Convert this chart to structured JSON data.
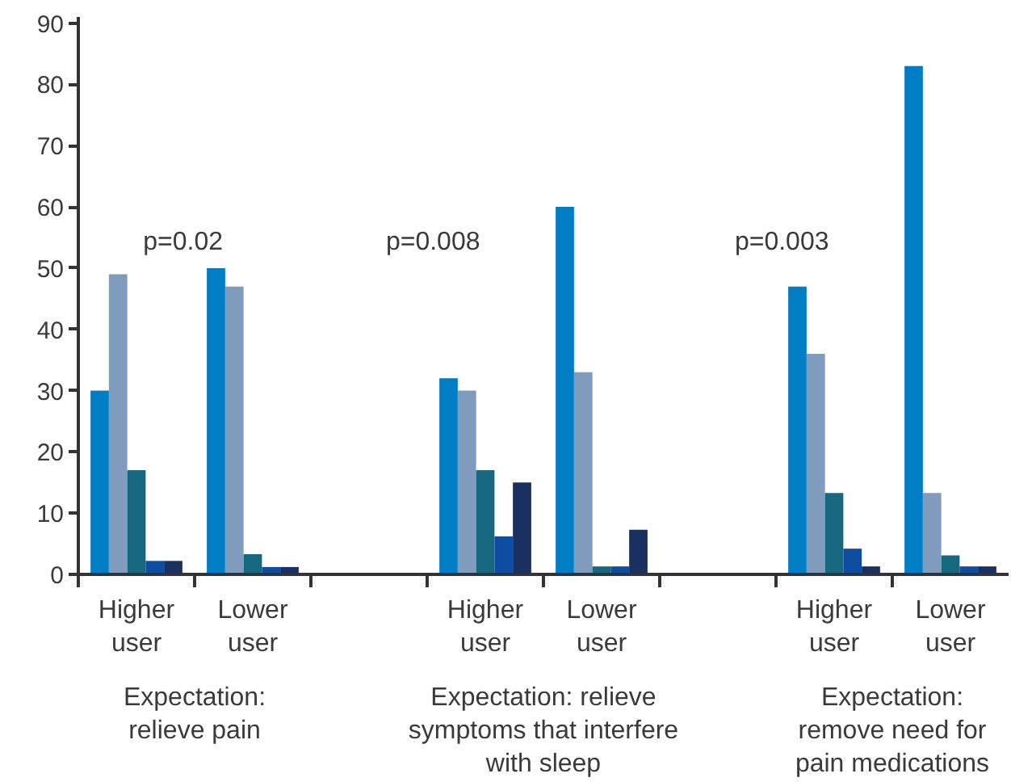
{
  "chart_data": {
    "type": "bar",
    "categories": [
      "Higher\nuser",
      "Lower\nuser",
      null,
      "Higher\nuser",
      "Lower\nuser",
      null,
      "Higher\nuser",
      "Lower\nuser"
    ],
    "series": [
      {
        "color": "#007dc5",
        "values": [
          30,
          50,
          null,
          32,
          60,
          null,
          47,
          83
        ]
      },
      {
        "color": "#7f9bbd",
        "values": [
          49,
          47,
          null,
          30,
          33,
          null,
          36,
          13.3
        ]
      },
      {
        "color": "#16687e",
        "values": [
          17,
          3.3,
          null,
          17,
          1.3,
          null,
          13.3,
          3.1
        ]
      },
      {
        "color": "#0d4ea3",
        "values": [
          2.2,
          1.2,
          null,
          6.2,
          1.3,
          null,
          4.2,
          1.3
        ]
      },
      {
        "color": "#1a3060",
        "values": [
          2.2,
          1.2,
          null,
          15,
          7.3,
          null,
          1.3,
          1.3
        ]
      }
    ],
    "ylim": [
      0,
      91
    ],
    "yticks": [
      0,
      10,
      20,
      30,
      40,
      50,
      60,
      70,
      80,
      90
    ],
    "grid": false,
    "annotations": [
      "p=0.02",
      "p=0.008",
      "p=0.003",
      "Expectation:\nrelieve pain",
      "Expectation: relieve\nsymptoms that interfere\nwith sleep",
      "Expectation:\nremove need for\npain medications"
    ]
  }
}
